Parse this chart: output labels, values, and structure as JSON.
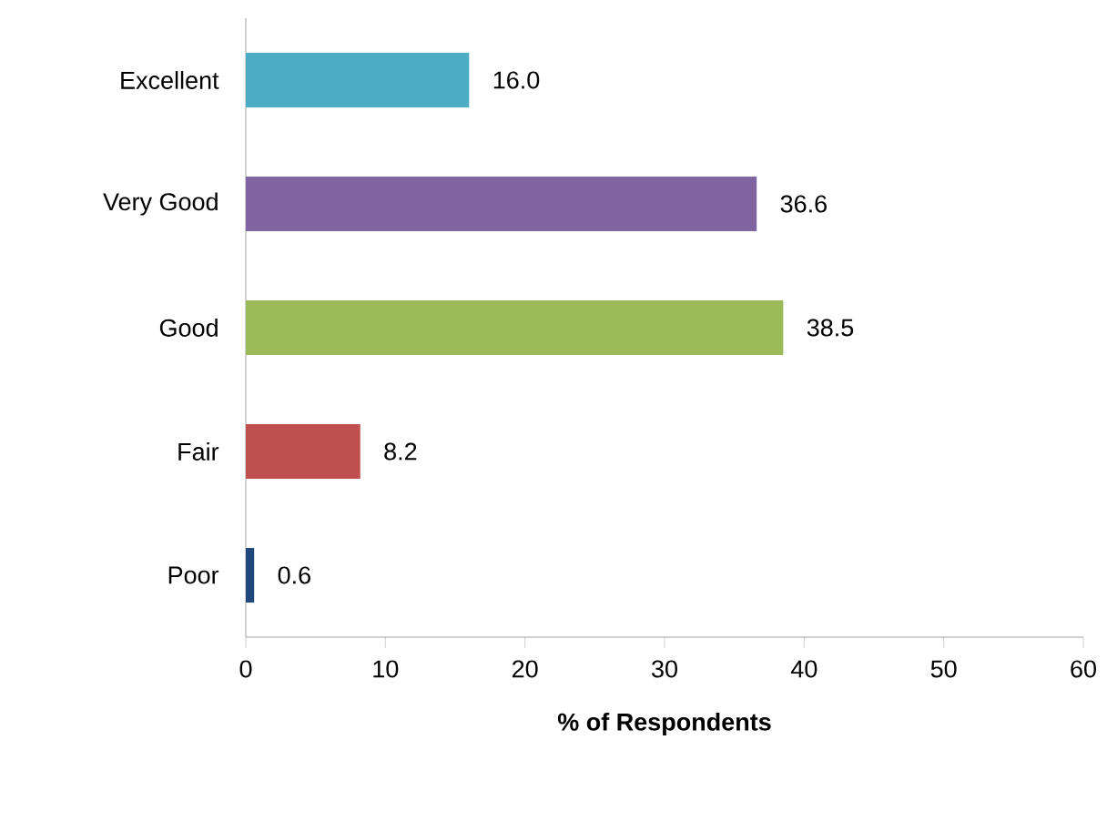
{
  "chart_data": {
    "type": "bar",
    "orientation": "horizontal",
    "xlabel": "% of Respondents",
    "categories": [
      "Excellent",
      "Very Good",
      "Good",
      "Fair",
      "Poor"
    ],
    "values": [
      16.0,
      36.6,
      38.5,
      8.2,
      0.6
    ],
    "value_labels": [
      "16.0",
      "36.6",
      "38.5",
      "8.2",
      "0.6"
    ],
    "colors": [
      "#4bacc6",
      "#8064a2",
      "#9bbb59",
      "#c0504d",
      "#1f497d"
    ],
    "xlim": [
      0,
      60
    ],
    "xticks": [
      0,
      10,
      20,
      30,
      40,
      50,
      60
    ],
    "grid": false
  }
}
